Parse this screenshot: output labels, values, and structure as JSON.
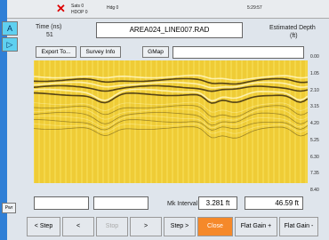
{
  "status_bar": {
    "items": [
      "Sats 0",
      "HDOP 0",
      "Hdg 0",
      "5:29:57"
    ]
  },
  "side_buttons": [
    "A",
    "▷"
  ],
  "time": {
    "label": "Time (ns)",
    "value": "51"
  },
  "filename": "AREA024_LINE007.RAD",
  "depth": {
    "label": "Estimated Depth",
    "unit": "(ft)"
  },
  "toolbar": [
    "Export To...",
    "Survey Info",
    "GMap"
  ],
  "depth_scale": [
    "0.00",
    "1.05",
    "2.10",
    "3.15",
    "4.20",
    "5.25",
    "6.30",
    "7.35",
    "8.40"
  ],
  "marker": {
    "label": "Mk Interval",
    "interval": "3.281 ft",
    "distance": "46.59 ft"
  },
  "power_button": "Pwr",
  "nav_buttons": [
    "< Step",
    "<",
    "Stop",
    ">",
    "Step >",
    "Close",
    "Flat Gain +",
    "Flat Gain -"
  ]
}
